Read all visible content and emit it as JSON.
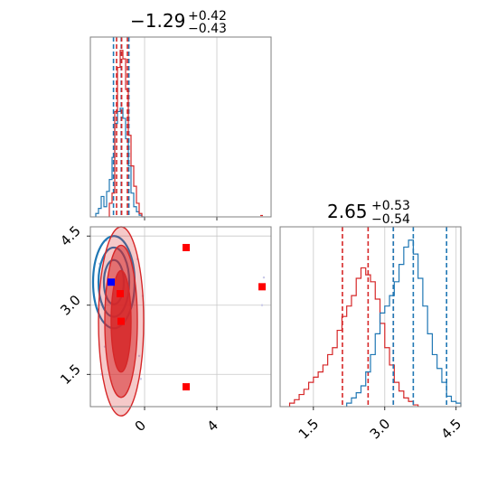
{
  "chart_data": [
    {
      "type": "histogram",
      "panel": "marginal-param-1",
      "title": {
        "main": "−1.29",
        "sup": "+0.42",
        "sub": "−0.43"
      },
      "xlim": [
        -3.0,
        7.0
      ],
      "x_ticks": [
        0,
        4
      ],
      "x_tick_labels": [
        "0",
        "4"
      ],
      "grid": true,
      "series": [
        {
          "color": "#1f77b4",
          "bin_edges": [
            -2.7,
            -2.55,
            -2.4,
            -2.25,
            -2.1,
            -1.95,
            -1.8,
            -1.65,
            -1.5,
            -1.35,
            -1.2,
            -1.05,
            -0.9,
            -0.75,
            -0.6,
            -0.45,
            -0.3,
            -0.15,
            0.0
          ],
          "counts": [
            0.02,
            0.05,
            0.12,
            0.06,
            0.15,
            0.22,
            0.35,
            0.55,
            0.62,
            0.64,
            0.58,
            0.46,
            0.3,
            0.14,
            0.06,
            0.03,
            0.01,
            0.0
          ],
          "quantiles": [
            -1.72,
            -1.29,
            -0.87
          ]
        },
        {
          "color": "#d62728",
          "bin_edges": [
            -1.95,
            -1.8,
            -1.65,
            -1.5,
            -1.35,
            -1.2,
            -1.05,
            -0.9,
            -0.75,
            -0.6,
            -0.45,
            -0.3,
            -0.15
          ],
          "counts": [
            0.08,
            0.14,
            0.62,
            0.88,
            0.98,
            0.93,
            0.75,
            0.48,
            0.3,
            0.18,
            0.08,
            0.02
          ],
          "quantiles": [
            -1.55,
            -1.27,
            -0.95
          ]
        }
      ]
    },
    {
      "type": "contour",
      "panel": "joint-param1-param2",
      "xlim": [
        -3.0,
        7.0
      ],
      "ylim": [
        0.8,
        4.7
      ],
      "x_ticks": [
        0,
        4
      ],
      "x_tick_labels": [
        "0",
        "4"
      ],
      "y_ticks": [
        1.5,
        3.0,
        4.5
      ],
      "y_tick_labels": [
        "1.5",
        "3.0",
        "4.5"
      ],
      "grid": true,
      "series": [
        {
          "color": "#1f77b4",
          "center": [
            -1.7,
            3.5
          ],
          "levels": [
            [
              0.55,
              0.48
            ],
            [
              0.85,
              0.75
            ],
            [
              1.15,
              1.0
            ]
          ]
        },
        {
          "color": "#d62728",
          "center": [
            -1.3,
            2.65
          ],
          "levels": [
            [
              0.55,
              1.1
            ],
            [
              0.9,
              1.65
            ],
            [
              1.25,
              2.05
            ]
          ]
        }
      ],
      "markers": [
        {
          "color": "#ff0000",
          "x": 2.3,
          "y": 4.25
        },
        {
          "color": "#ff0000",
          "x": 6.5,
          "y": 3.4
        },
        {
          "color": "#ff0000",
          "x": -1.35,
          "y": 3.25
        },
        {
          "color": "#ff0000",
          "x": -1.3,
          "y": 2.65
        },
        {
          "color": "#ff0000",
          "x": 2.3,
          "y": 1.23
        },
        {
          "color": "#0000ff",
          "x": -1.85,
          "y": 3.5
        }
      ]
    },
    {
      "type": "histogram",
      "panel": "marginal-param-2",
      "title": {
        "main": "2.65",
        "sup": "+0.53",
        "sub": "−0.54"
      },
      "xlim": [
        0.8,
        4.6
      ],
      "x_ticks": [
        1.5,
        3.0,
        4.5
      ],
      "x_tick_labels": [
        "1.5",
        "3.0",
        "4.5"
      ],
      "grid": true,
      "series": [
        {
          "color": "#d62728",
          "bin_edges": [
            1.0,
            1.1,
            1.2,
            1.3,
            1.4,
            1.5,
            1.6,
            1.7,
            1.8,
            1.9,
            2.0,
            2.1,
            2.2,
            2.3,
            2.4,
            2.5,
            2.6,
            2.7,
            2.8,
            2.9,
            3.0,
            3.1,
            3.2,
            3.3,
            3.4,
            3.5,
            3.6,
            3.7
          ],
          "counts": [
            0.02,
            0.04,
            0.07,
            0.1,
            0.14,
            0.17,
            0.2,
            0.24,
            0.3,
            0.34,
            0.44,
            0.52,
            0.58,
            0.64,
            0.74,
            0.8,
            0.76,
            0.72,
            0.62,
            0.48,
            0.34,
            0.24,
            0.14,
            0.09,
            0.05,
            0.03,
            0.01
          ],
          "quantiles": [
            2.11,
            2.65,
            3.18
          ]
        },
        {
          "color": "#1f77b4",
          "bin_edges": [
            2.2,
            2.3,
            2.4,
            2.5,
            2.6,
            2.7,
            2.8,
            2.9,
            3.0,
            3.1,
            3.2,
            3.3,
            3.4,
            3.5,
            3.6,
            3.7,
            3.8,
            3.9,
            4.0,
            4.1,
            4.2,
            4.3,
            4.4,
            4.5,
            4.6
          ],
          "counts": [
            0.02,
            0.05,
            0.08,
            0.12,
            0.2,
            0.3,
            0.42,
            0.54,
            0.58,
            0.64,
            0.72,
            0.82,
            0.92,
            0.96,
            0.88,
            0.74,
            0.58,
            0.42,
            0.3,
            0.22,
            0.14,
            0.06,
            0.03,
            0.02
          ],
          "quantiles": [
            3.18,
            3.6,
            4.3
          ]
        }
      ]
    }
  ]
}
